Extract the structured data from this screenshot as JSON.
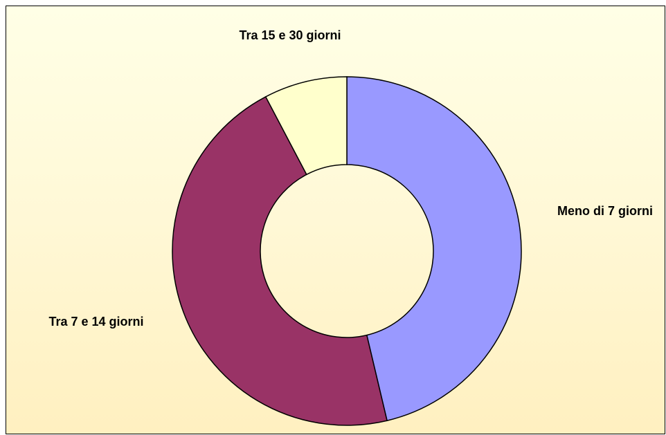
{
  "chart_data": {
    "type": "donut",
    "categories": [
      "Meno di 7 giorni",
      "Tra 7 e 14 giorni",
      "Tra 15 e 30 giorni"
    ],
    "values": [
      46.3,
      46.0,
      7.7
    ],
    "colors": [
      "#9999ff",
      "#993366",
      "#ffffcc"
    ]
  }
}
